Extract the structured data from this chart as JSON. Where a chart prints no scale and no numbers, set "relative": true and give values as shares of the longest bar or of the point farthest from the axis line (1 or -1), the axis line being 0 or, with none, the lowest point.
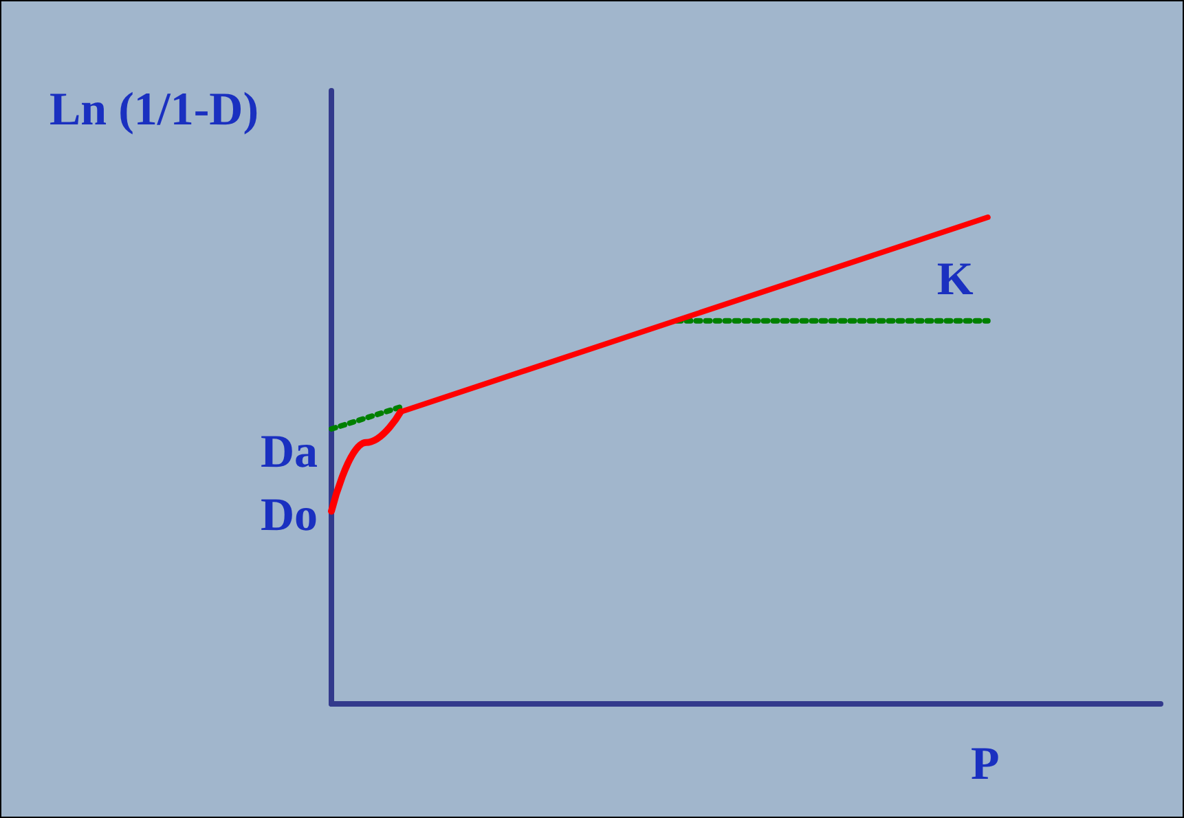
{
  "chart_data": {
    "type": "line",
    "relative": true,
    "xlabel": "P",
    "ylabel": "Ln (1/1-D)",
    "categories": [
      null,
      null,
      null,
      null,
      null,
      null,
      null,
      null,
      null,
      null,
      null,
      null,
      null,
      null,
      null,
      null,
      null,
      null,
      null,
      null,
      null,
      null,
      null,
      null,
      null
    ],
    "series": [
      {
        "color": "#ff0000",
        "line_style": "solid",
        "values": [
          0.396,
          0.537,
          0.6,
          null,
          null,
          null,
          null,
          null,
          null,
          null,
          null,
          null,
          null,
          null,
          null,
          null,
          null,
          null,
          null,
          null,
          null,
          null,
          null,
          null,
          null
        ]
      },
      {
        "color": "#ff0000",
        "line_style": "solid",
        "values": [
          null,
          null,
          0.6,
          null,
          null,
          null,
          null,
          null,
          null,
          null,
          null,
          null,
          null,
          null,
          null,
          null,
          null,
          null,
          null,
          1,
          null,
          null,
          null,
          null,
          null
        ]
      },
      {
        "color": "#008000",
        "line_style": "dotted",
        "values": [
          0.565,
          null,
          0.61,
          null,
          null,
          null,
          null,
          null,
          null,
          null,
          null,
          null,
          null,
          null,
          null,
          null,
          null,
          null,
          null,
          null,
          null,
          null,
          null,
          null,
          null
        ]
      },
      {
        "name": "K",
        "color": "#008000",
        "line_style": "dotted",
        "values": [
          null,
          null,
          null,
          null,
          null,
          null,
          null,
          null,
          null,
          null,
          0.787,
          null,
          null,
          null,
          null,
          null,
          null,
          null,
          null,
          0.787,
          null,
          null,
          null,
          null,
          null
        ]
      }
    ],
    "annotations": [
      "Da",
      "Do"
    ],
    "grid": false,
    "legend": false,
    "marker": "none"
  }
}
